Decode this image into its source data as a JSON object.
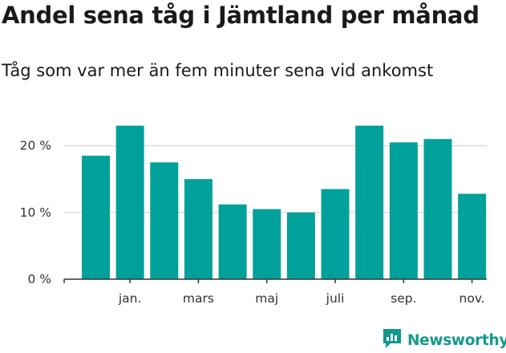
{
  "title": "Andel sena tåg i Jämtland per månad",
  "subtitle": "Tåg som var mer än fem minuter sena vid ankomst",
  "brand": {
    "name": "Newsworthy",
    "icon": "newsworthy-logo-icon"
  },
  "colors": {
    "bar": "#00a19a",
    "grid": "#dcdcdc",
    "axis": "#333333",
    "brand": "#149a8c"
  },
  "chart_data": {
    "type": "bar",
    "categories": [
      "",
      "jan.",
      "",
      "mars",
      "",
      "maj",
      "",
      "juli",
      "",
      "sep.",
      "",
      "nov."
    ],
    "values": [
      18.5,
      23,
      17.5,
      15,
      11.2,
      10.5,
      10,
      13.5,
      23,
      20.5,
      21,
      12.8
    ],
    "title": "Andel sena tåg i Jämtland per månad",
    "subtitle": "Tåg som var mer än fem minuter sena vid ankomst",
    "xlabel": "",
    "ylabel": "",
    "ylim": [
      0,
      25
    ],
    "yticks": [
      0,
      10,
      20
    ],
    "ytick_labels": [
      "0 %",
      "10 %",
      "20 %"
    ],
    "grid": true,
    "legend": "none"
  }
}
